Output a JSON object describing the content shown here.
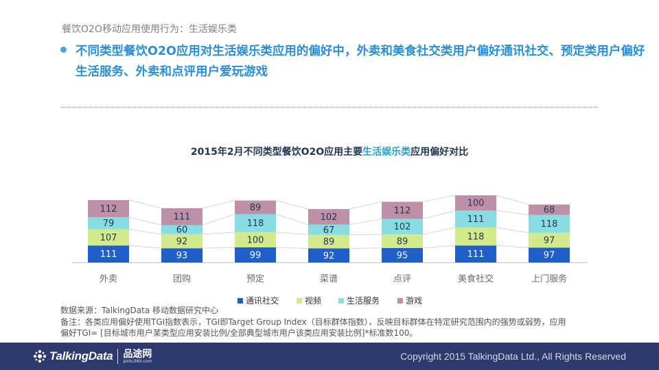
{
  "header": {
    "section_title": "餐饮O2O移动应用使用行为：生活娱乐类",
    "headline": "不同类型餐饮O2O应用对生活娱乐类应用的偏好中，外卖和美食社交类用户偏好通讯社交、预定类用户偏好生活服务、外卖和点评用户爱玩游戏"
  },
  "chart_title": {
    "prefix": "2015年2月不同类型餐饮O2O应用主要",
    "highlight": "生活娱乐类",
    "suffix": "应用偏好对比"
  },
  "chart_data": {
    "type": "bar",
    "stacked": true,
    "categories": [
      "外卖",
      "团购",
      "预定",
      "菜谱",
      "点评",
      "美食社交",
      "上门服务"
    ],
    "series": [
      {
        "name": "通讯社交",
        "color": "#1f5fc9",
        "values": [
          111,
          93,
          99,
          92,
          95,
          111,
          97
        ]
      },
      {
        "name": "视频",
        "color": "#d3ea8c",
        "values": [
          107,
          92,
          100,
          89,
          89,
          118,
          97
        ]
      },
      {
        "name": "生活服务",
        "color": "#88dde3",
        "values": [
          79,
          60,
          118,
          67,
          102,
          111,
          118
        ]
      },
      {
        "name": "游戏",
        "color": "#be8fa6",
        "values": [
          112,
          111,
          89,
          102,
          112,
          100,
          68
        ]
      }
    ],
    "data_labels": true,
    "legend": "bottom",
    "connector_lines": true,
    "grid": false,
    "y_axis_visible": false
  },
  "footer": {
    "source": "数据来源：TalkingData 移动数据研究中心",
    "note_line1": "备注：各类应用偏好使用TGI指数表示，TGI即Target Group Index（目标群体指数），反映目标群体在特定研究范围内的强势或弱势，应用",
    "note_line2": "偏好TGI= [目标城市用户某类型应用安装比例/全部典型城市用户该类应用安装比例]*标准数100。"
  },
  "branding": {
    "logo_text": "TalkingData",
    "partner_logo": "品途网",
    "partner_url": "pintu360.com",
    "copyright": "Copyright 2015 TalkingData Ltd., All Rights Reserved"
  }
}
